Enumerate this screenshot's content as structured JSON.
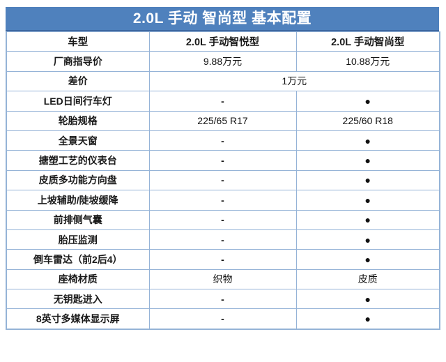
{
  "colors": {
    "title_bg": "#4f81bd",
    "title_edge": "#3c66a0",
    "title_text": "#ffffff",
    "border": "#95b3d7",
    "text": "#1a1a1a"
  },
  "chart_data": {
    "type": "table",
    "title": "2.0L 手动 智尚型 基本配置",
    "columns": [
      "车型",
      "2.0L 手动智悦型",
      "2.0L 手动智尚型"
    ],
    "symbols": {
      "included": "●",
      "not_available": "-"
    },
    "rows": [
      {
        "label": "厂商指导价",
        "values": [
          "9.88万元",
          "10.88万元"
        ],
        "merged": false
      },
      {
        "label": "差价",
        "values": [
          "1万元"
        ],
        "merged": true
      },
      {
        "label": "LED日间行车灯",
        "values": [
          "-",
          "●"
        ],
        "merged": false
      },
      {
        "label": "轮胎规格",
        "values": [
          "225/65 R17",
          "225/60 R18"
        ],
        "merged": false
      },
      {
        "label": "全景天窗",
        "values": [
          "-",
          "●"
        ],
        "merged": false
      },
      {
        "label": "搪塑工艺的仪表台",
        "values": [
          "-",
          "●"
        ],
        "merged": false
      },
      {
        "label": "皮质多功能方向盘",
        "values": [
          "-",
          "●"
        ],
        "merged": false
      },
      {
        "label": "上坡辅助/陡坡缓降",
        "values": [
          "-",
          "●"
        ],
        "merged": false
      },
      {
        "label": "前排侧气囊",
        "values": [
          "-",
          "●"
        ],
        "merged": false
      },
      {
        "label": "胎压监测",
        "values": [
          "-",
          "●"
        ],
        "merged": false
      },
      {
        "label": "倒车雷达（前2后4）",
        "values": [
          "-",
          "●"
        ],
        "merged": false
      },
      {
        "label": "座椅材质",
        "values": [
          "织物",
          "皮质"
        ],
        "merged": false
      },
      {
        "label": "无钥匙进入",
        "values": [
          "-",
          "●"
        ],
        "merged": false
      },
      {
        "label": "8英寸多媒体显示屏",
        "values": [
          "-",
          "●"
        ],
        "merged": false
      }
    ]
  }
}
